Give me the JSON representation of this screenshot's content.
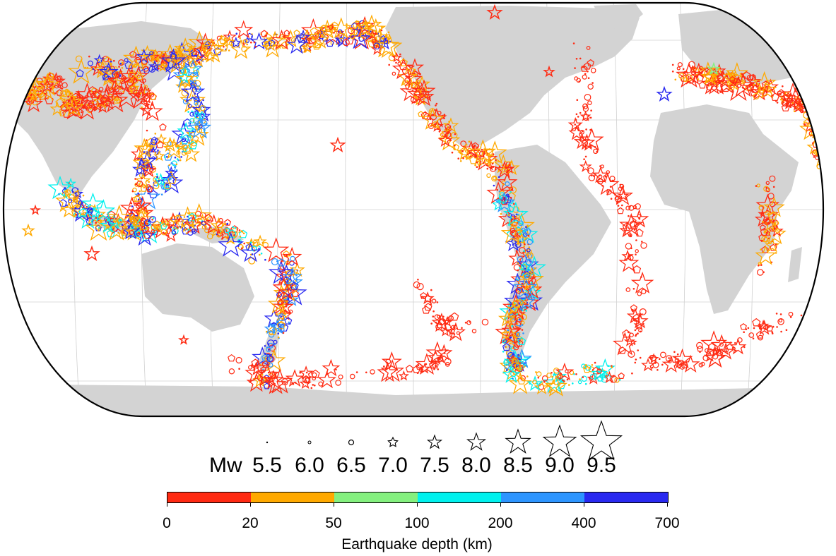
{
  "map": {
    "projection": "Eckert IV (Pacific-centred)",
    "ocean_color": "#ffffff",
    "land_color": "#d3d3d3",
    "graticule_color": "#c8c8c8",
    "border_color": "#000000"
  },
  "magnitude_legend": {
    "prefix": "Mw",
    "items": [
      {
        "label": "5.5",
        "symbol": "dot"
      },
      {
        "label": "6.0",
        "symbol": "small-circle"
      },
      {
        "label": "6.5",
        "symbol": "circle"
      },
      {
        "label": "7.0",
        "symbol": "pentagon"
      },
      {
        "label": "7.5",
        "symbol": "star"
      },
      {
        "label": "8.0",
        "symbol": "star"
      },
      {
        "label": "8.5",
        "symbol": "star"
      },
      {
        "label": "9.0",
        "symbol": "star"
      },
      {
        "label": "9.5",
        "symbol": "star"
      }
    ]
  },
  "depth_colorbar": {
    "title": "Earthquake depth (km)",
    "ticks": [
      "0",
      "20",
      "50",
      "100",
      "200",
      "400",
      "700"
    ],
    "colors": [
      "#ff2a12",
      "#ffa900",
      "#84f07f",
      "#00f1ee",
      "#2d95ff",
      "#2929f0"
    ]
  }
}
